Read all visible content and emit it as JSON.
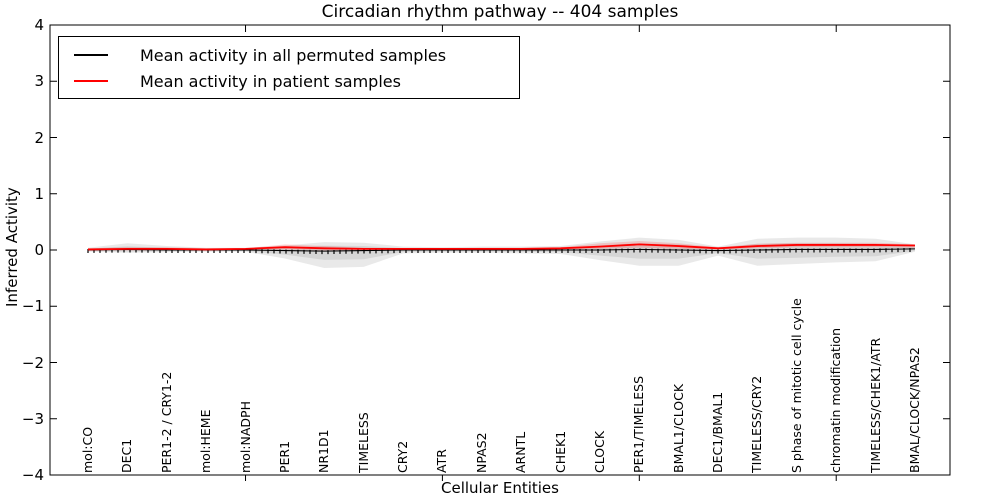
{
  "chart_data": {
    "type": "line",
    "title": "Circadian rhythm pathway -- 404 samples",
    "xlabel": "Cellular Entities",
    "ylabel": "Inferred Activity",
    "ylim": [
      -4,
      4
    ],
    "yticks": [
      -4,
      -3,
      -2,
      -1,
      0,
      1,
      2,
      3,
      4
    ],
    "ytick_labels": [
      "−4",
      "−3",
      "−2",
      "−1",
      "0",
      "1",
      "2",
      "3",
      "4"
    ],
    "x_major_tick_indices": [
      4,
      9,
      14,
      19
    ],
    "grid": false,
    "legend_position": "upper left",
    "categories": [
      "mol:CO",
      "DEC1",
      "PER1-2 / CRY1-2",
      "mol:HEME",
      "mol:NADPH",
      "PER1",
      "NR1D1",
      "TIMELESS",
      "CRY2",
      "ATR",
      "NPAS2",
      "ARNTL",
      "CHEK1",
      "CLOCK",
      "PER1/TIMELESS",
      "BMAL1/CLOCK",
      "DEC1/BMAL1",
      "TIMELESS/CRY2",
      "S phase of mitotic cell cycle",
      "chromatin modification",
      "TIMELESS/CHEK1/ATR",
      "BMAL/CLOCK/NPAS2"
    ],
    "series": [
      {
        "name": "Mean activity in all permuted samples",
        "color": "#000000",
        "marker": "+",
        "values": [
          0.0,
          0.01,
          0.0,
          0.0,
          0.0,
          -0.01,
          -0.02,
          -0.01,
          0.0,
          0.0,
          0.0,
          0.0,
          0.0,
          0.0,
          0.01,
          0.0,
          -0.01,
          0.0,
          0.01,
          0.01,
          0.01,
          0.02
        ]
      },
      {
        "name": "Mean activity in patient samples",
        "color": "#ff0000",
        "marker": null,
        "values": [
          0.01,
          0.02,
          0.02,
          0.01,
          0.02,
          0.05,
          0.03,
          0.02,
          0.02,
          0.02,
          0.02,
          0.02,
          0.03,
          0.06,
          0.1,
          0.07,
          0.03,
          0.07,
          0.09,
          0.09,
          0.09,
          0.08
        ]
      }
    ],
    "bands": [
      {
        "name": "permuted-samples-range",
        "color": "rgba(100,100,100,0.14)",
        "low": [
          -0.03,
          -0.05,
          -0.04,
          -0.03,
          -0.03,
          -0.15,
          -0.32,
          -0.3,
          -0.06,
          -0.05,
          -0.05,
          -0.06,
          -0.07,
          -0.18,
          -0.28,
          -0.28,
          -0.1,
          -0.28,
          -0.25,
          -0.22,
          -0.2,
          -0.03
        ],
        "high": [
          0.04,
          0.12,
          0.07,
          0.04,
          0.04,
          0.08,
          0.14,
          0.13,
          0.06,
          0.05,
          0.06,
          0.06,
          0.07,
          0.15,
          0.22,
          0.18,
          0.06,
          0.2,
          0.22,
          0.22,
          0.2,
          0.1
        ]
      },
      {
        "name": "patient-samples-range",
        "color": "rgba(255,0,0,0.16)",
        "low": [
          -0.01,
          -0.01,
          -0.01,
          0.0,
          0.0,
          0.01,
          -0.01,
          0.0,
          0.0,
          0.0,
          0.0,
          0.0,
          0.01,
          0.02,
          0.04,
          0.02,
          0.01,
          0.03,
          0.05,
          0.05,
          0.05,
          0.04
        ],
        "high": [
          0.03,
          0.05,
          0.05,
          0.03,
          0.03,
          0.1,
          0.07,
          0.04,
          0.03,
          0.03,
          0.04,
          0.04,
          0.05,
          0.12,
          0.16,
          0.12,
          0.05,
          0.11,
          0.13,
          0.13,
          0.13,
          0.1
        ]
      }
    ]
  }
}
